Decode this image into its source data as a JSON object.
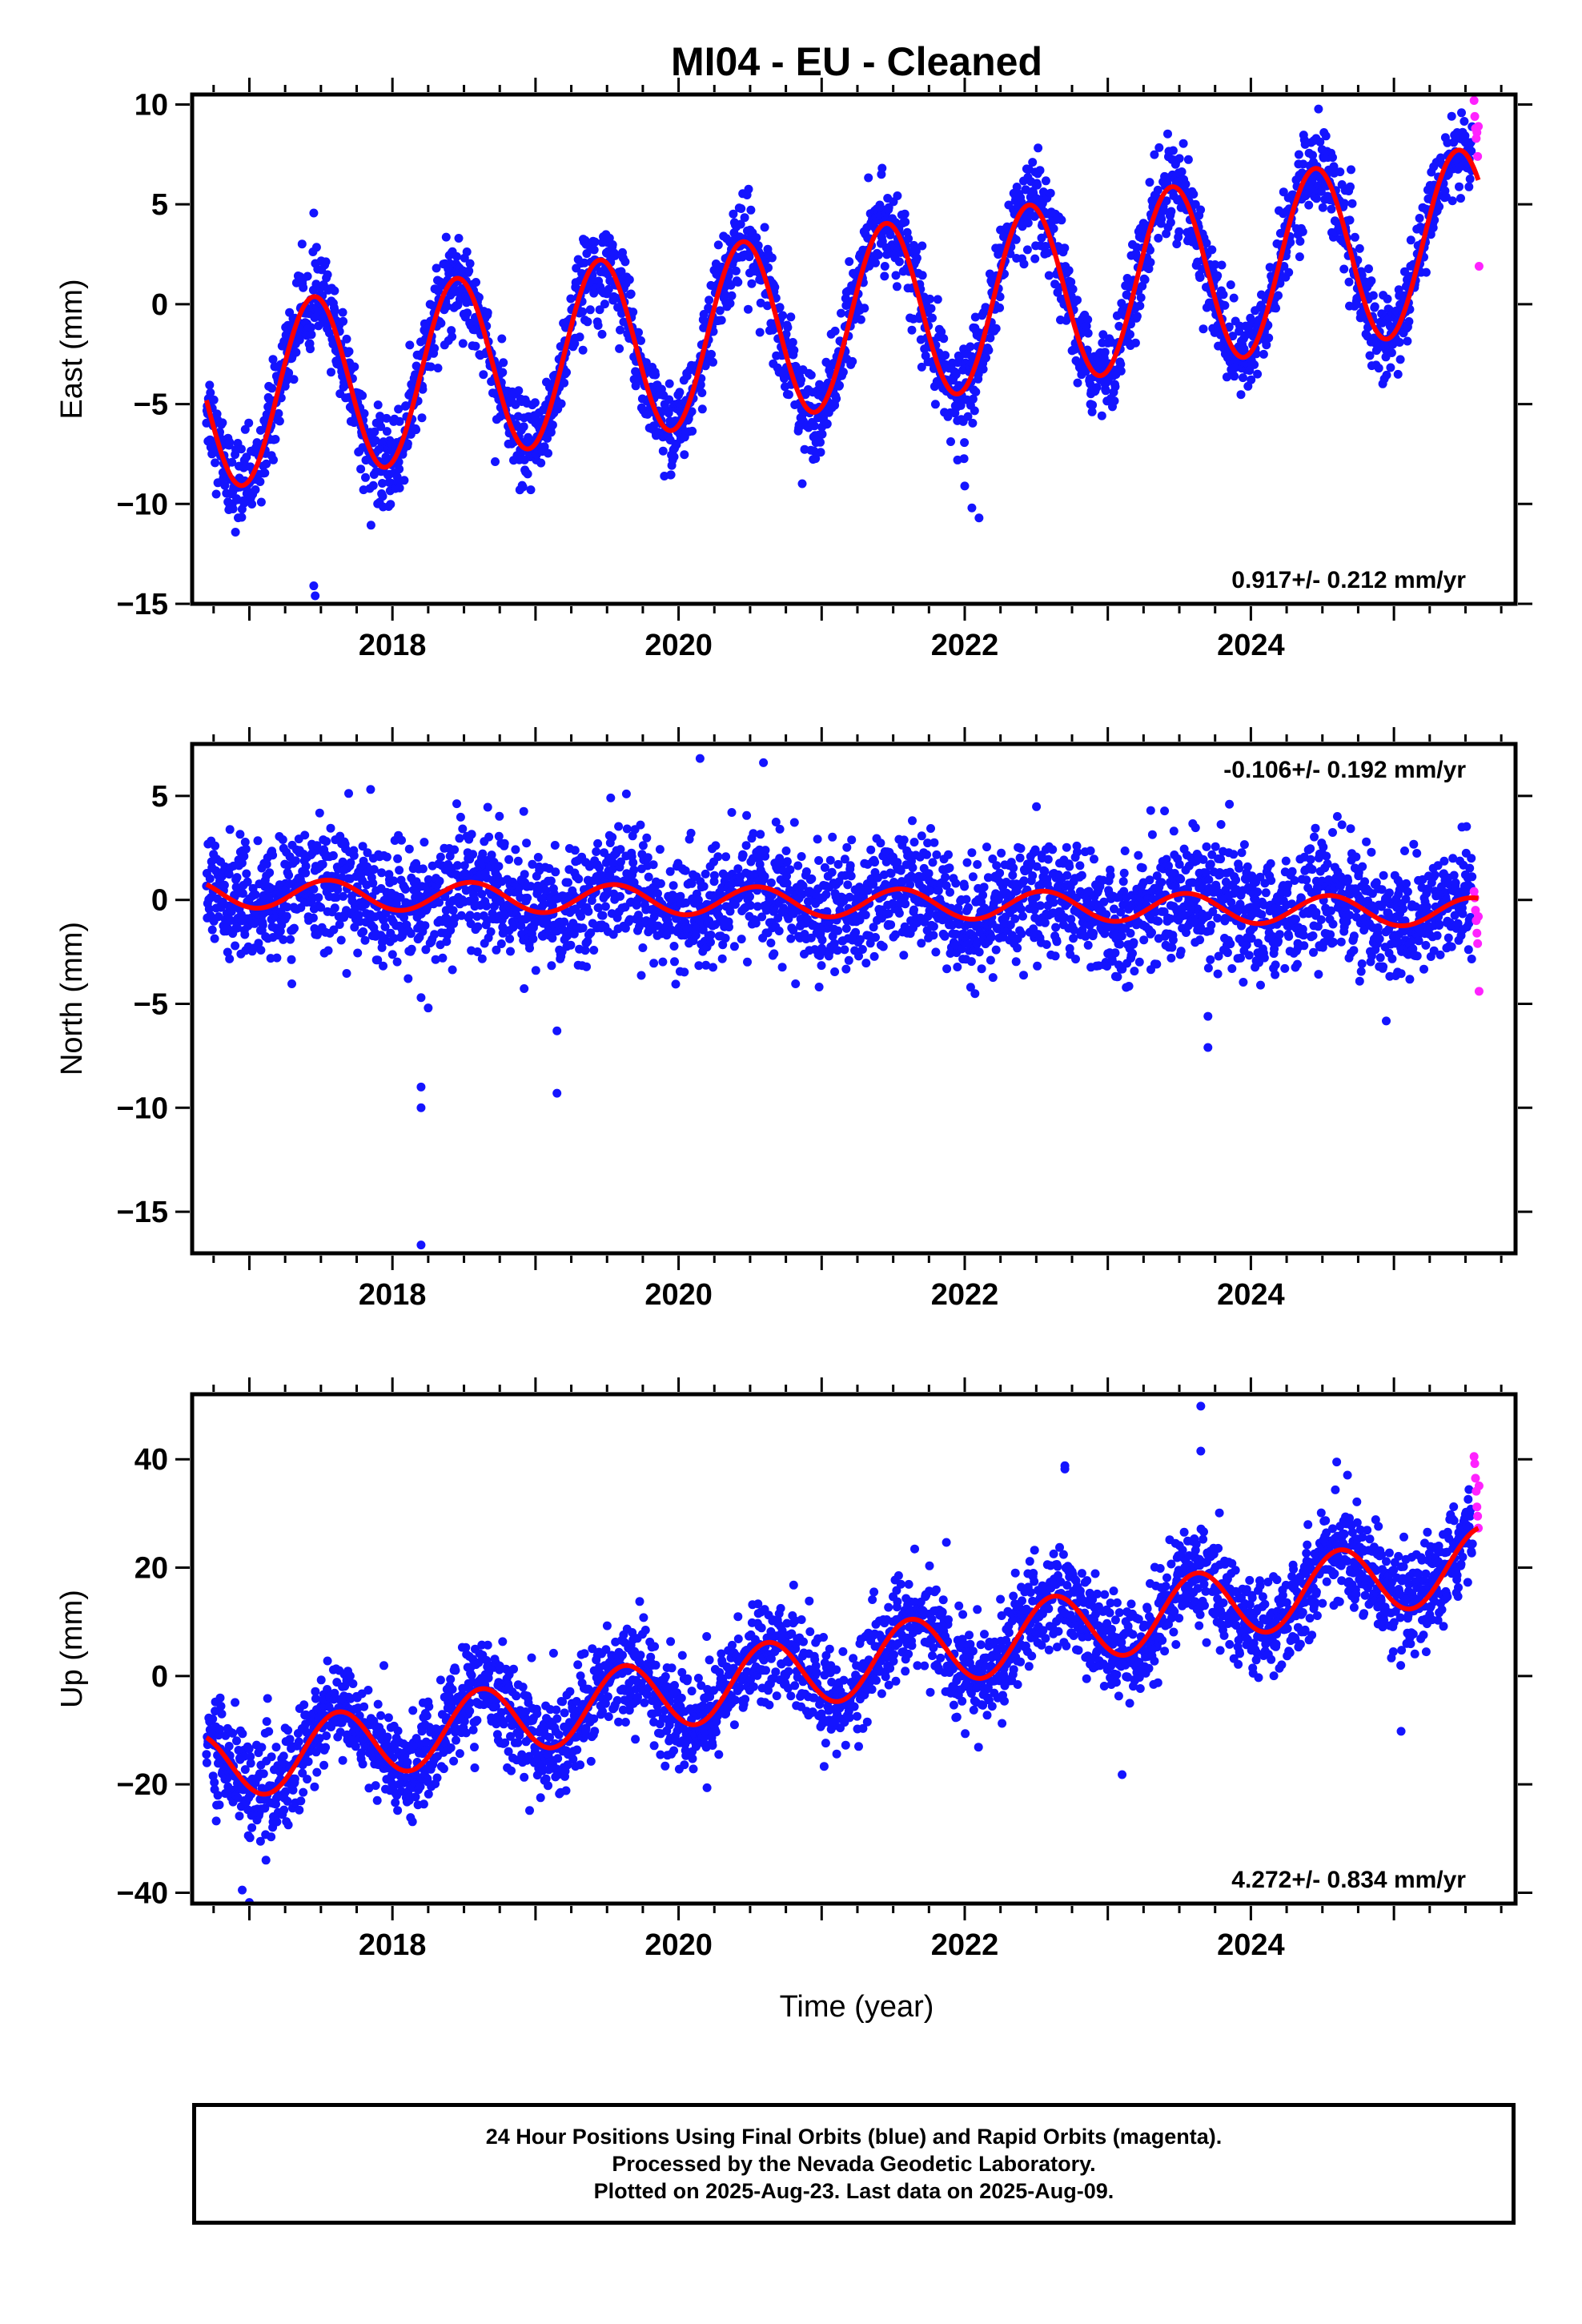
{
  "title": "MI04  - EU - Cleaned",
  "xlabel": "Time (year)",
  "colors": {
    "final": "#1414ff",
    "rapid": "#ff22ff",
    "fit": "#ff0000"
  },
  "caption": [
    "24 Hour Positions Using Final Orbits (blue) and Rapid Orbits (magenta).",
    "Processed by the Nevada Geodetic Laboratory.",
    "Plotted on 2025-Aug-23. Last data on 2025-Aug-09."
  ],
  "chart_data": [
    {
      "type": "scatter",
      "ylabel": "East (mm)",
      "xlim": [
        2016.6,
        2025.85
      ],
      "ylim": [
        -15,
        10.5
      ],
      "xticks": [
        2018,
        2020,
        2022,
        2024
      ],
      "yticks": [
        -15,
        -10,
        -5,
        0,
        5,
        10
      ],
      "rate_label": "0.917+/- 0.212 mm/yr",
      "rate_position": "bottom-right",
      "series": [
        {
          "kind": "final_daily",
          "x_range": [
            2016.7,
            2025.55
          ],
          "trend": 0.917,
          "offset": -4.9,
          "annual_amplitude": 4.5,
          "annual_peak_year_fraction": 0.45,
          "scatter": 1.1
        },
        {
          "kind": "rapid_daily",
          "x": [
            2025.56,
            2025.565,
            2025.57,
            2025.575,
            2025.58,
            2025.585,
            2025.59,
            2025.595
          ],
          "y": [
            10.2,
            9.4,
            8.8,
            8.3,
            8.6,
            7.4,
            8.9,
            1.9
          ]
        },
        {
          "kind": "fit",
          "trend": 0.917,
          "offset": -4.9,
          "annual_amplitude": 4.5,
          "annual_peak_year_fraction": 0.45
        }
      ],
      "outliers": [
        [
          2017.45,
          -14.1
        ],
        [
          2017.46,
          -14.6
        ],
        [
          2021.95,
          -7.8
        ],
        [
          2022.0,
          -9.1
        ],
        [
          2022.05,
          -10.2
        ],
        [
          2022.1,
          -10.7
        ],
        [
          2018.05,
          -9.2
        ],
        [
          2016.85,
          -9.9
        ]
      ]
    },
    {
      "type": "scatter",
      "ylabel": "North (mm)",
      "xlim": [
        2016.6,
        2025.85
      ],
      "ylim": [
        -17,
        7.5
      ],
      "xticks": [
        2018,
        2020,
        2022,
        2024
      ],
      "yticks": [
        -15,
        -10,
        -5,
        0,
        5
      ],
      "rate_label": "-0.106+/- 0.192 mm/yr",
      "rate_position": "top-right",
      "series": [
        {
          "kind": "final_daily",
          "x_range": [
            2016.7,
            2025.55
          ],
          "trend": -0.106,
          "offset": 0.35,
          "annual_amplitude": 0.7,
          "annual_peak_year_fraction": 0.55,
          "scatter": 1.4
        },
        {
          "kind": "rapid_daily",
          "x": [
            2025.56,
            2025.565,
            2025.57,
            2025.575,
            2025.58,
            2025.585,
            2025.59,
            2025.595
          ],
          "y": [
            0.4,
            0.1,
            -0.5,
            -1.0,
            -1.6,
            -2.1,
            -0.8,
            -4.4
          ]
        },
        {
          "kind": "fit",
          "trend": -0.106,
          "offset": 0.35,
          "annual_amplitude": 0.7,
          "annual_peak_year_fraction": 0.55
        }
      ],
      "outliers": [
        [
          2018.2,
          -4.7
        ],
        [
          2018.25,
          -5.2
        ],
        [
          2018.2,
          -9.0
        ],
        [
          2018.2,
          -10.0
        ],
        [
          2018.2,
          -16.6
        ],
        [
          2019.15,
          -6.3
        ],
        [
          2019.15,
          -9.3
        ],
        [
          2020.15,
          6.8
        ],
        [
          2023.7,
          -5.6
        ],
        [
          2023.7,
          -7.1
        ],
        [
          2023.85,
          4.6
        ],
        [
          2023.3,
          4.3
        ]
      ]
    },
    {
      "type": "scatter",
      "ylabel": "Up (mm)",
      "xlim": [
        2016.6,
        2025.85
      ],
      "ylim": [
        -42,
        52
      ],
      "xticks": [
        2018,
        2020,
        2022,
        2024
      ],
      "yticks": [
        -40,
        -20,
        0,
        20,
        40
      ],
      "rate_label": "4.272+/- 0.834 mm/yr",
      "rate_position": "bottom-right",
      "series": [
        {
          "kind": "final_daily",
          "x_range": [
            2016.7,
            2025.55
          ],
          "trend": 4.272,
          "offset": -17.5,
          "annual_amplitude": 6.5,
          "annual_peak_year_fraction": 0.62,
          "scatter": 4.6
        },
        {
          "kind": "rapid_daily",
          "x": [
            2025.56,
            2025.565,
            2025.57,
            2025.575,
            2025.58,
            2025.585,
            2025.59,
            2025.595
          ],
          "y": [
            40.5,
            39.2,
            36.5,
            34.1,
            31.2,
            29.5,
            27.3,
            35.1
          ]
        },
        {
          "kind": "fit",
          "trend": 4.272,
          "offset": -17.5,
          "annual_amplitude": 6.5,
          "annual_peak_year_fraction": 0.62
        }
      ],
      "outliers": [
        [
          2023.65,
          49.8
        ],
        [
          2023.65,
          41.5
        ],
        [
          2022.7,
          38.8
        ],
        [
          2022.7,
          38.2
        ],
        [
          2024.6,
          39.5
        ],
        [
          2016.95,
          -39.5
        ],
        [
          2017.0,
          -41.8
        ],
        [
          2023.1,
          -18.2
        ],
        [
          2025.05,
          -10.2
        ]
      ]
    }
  ]
}
